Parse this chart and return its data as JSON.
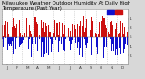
{
  "title": "Milwaukee Weather Outdoor Humidity At Daily High Temperature (Past Year)",
  "legend_blue": "blue",
  "legend_red": "red",
  "background_color": "#d8d8d8",
  "plot_bg": "#ffffff",
  "bar_width": 0.9,
  "ylim": [
    -60,
    60
  ],
  "yticks": [
    -40,
    -20,
    0,
    20,
    40
  ],
  "ytick_labels": [
    "2.",
    "4.",
    "6.",
    "8.",
    "1."
  ],
  "grid_color": "#aaaaaa",
  "blue_color": "#1010cc",
  "red_color": "#cc1010",
  "n_points": 365,
  "seed": 42,
  "figsize": [
    1.6,
    0.87
  ],
  "dpi": 100,
  "tick_fontsize": 3.0,
  "legend_fontsize": 3.0,
  "title_fontsize": 4.0
}
